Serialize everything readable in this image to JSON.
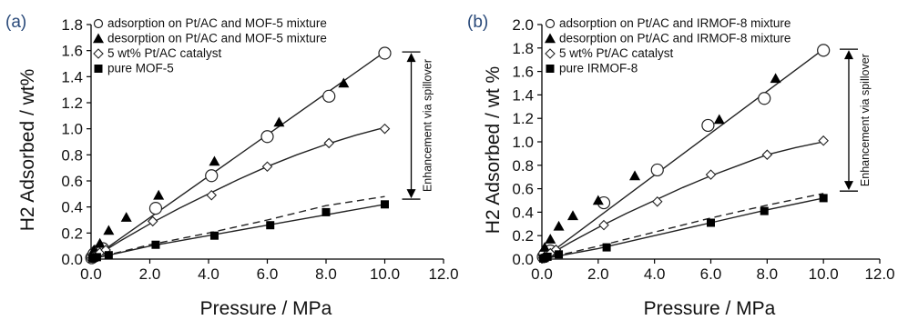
{
  "figure": {
    "panels": [
      "(a)",
      "(b)"
    ]
  },
  "chart_data": [
    {
      "type": "scatter",
      "panel_label": "(a)",
      "xlabel": "Pressure / MPa",
      "ylabel": "H2 Adsorbed / wt%",
      "xlim": [
        0,
        12
      ],
      "ylim": [
        0,
        1.8
      ],
      "xticks": [
        "0.0",
        "2.0",
        "4.0",
        "6.0",
        "8.0",
        "10.0",
        "12.0"
      ],
      "yticks": [
        "0.0",
        "0.2",
        "0.4",
        "0.6",
        "0.8",
        "1.0",
        "1.2",
        "1.4",
        "1.6",
        "1.8"
      ],
      "legend_position": "top-left",
      "annotation": "Enhancement via spillover",
      "enhancement_range": [
        0.46,
        1.59
      ],
      "series": [
        {
          "name": "adsorption on Pt/AC and MOF-5 mixture",
          "marker": "circle-open",
          "size": "large",
          "x": [
            0.02,
            0.05,
            0.1,
            0.2,
            0.4,
            2.2,
            4.1,
            6.0,
            8.1,
            10.0
          ],
          "y": [
            0.01,
            0.02,
            0.04,
            0.06,
            0.08,
            0.39,
            0.64,
            0.94,
            1.25,
            1.58
          ],
          "fit": "solid-linear",
          "fit_x": [
            0,
            10
          ],
          "fit_y": [
            0,
            1.59
          ]
        },
        {
          "name": "desorption on Pt/AC and MOF-5 mixture",
          "marker": "triangle-filled",
          "x": [
            0.1,
            0.3,
            0.6,
            1.2,
            2.3,
            4.2,
            6.4,
            8.6
          ],
          "y": [
            0.07,
            0.12,
            0.22,
            0.32,
            0.49,
            0.75,
            1.05,
            1.35
          ]
        },
        {
          "name": "5 wt% Pt/AC catalyst",
          "marker": "diamond-open",
          "x": [
            0.05,
            0.1,
            0.3,
            0.5,
            2.1,
            4.1,
            6.0,
            8.1,
            10.0
          ],
          "y": [
            0.01,
            0.02,
            0.05,
            0.07,
            0.29,
            0.49,
            0.71,
            0.89,
            1.0
          ],
          "fit": "solid-curve",
          "fit_x": [
            0,
            1,
            2,
            3,
            4,
            5,
            6,
            7,
            8,
            9,
            10
          ],
          "fit_y": [
            0,
            0.14,
            0.27,
            0.39,
            0.5,
            0.61,
            0.71,
            0.8,
            0.88,
            0.95,
            1.01
          ]
        },
        {
          "name": "pure MOF-5",
          "marker": "square-filled",
          "x": [
            0.05,
            0.1,
            0.2,
            0.6,
            2.2,
            4.2,
            6.1,
            8.0,
            10.0
          ],
          "y": [
            0.005,
            0.01,
            0.015,
            0.03,
            0.11,
            0.18,
            0.26,
            0.36,
            0.42
          ],
          "fit": "solid-curve",
          "fit_x": [
            0,
            2,
            4,
            6,
            8,
            10
          ],
          "fit_y": [
            0,
            0.1,
            0.18,
            0.26,
            0.34,
            0.42
          ],
          "fit2": "dashed",
          "fit2_x": [
            0,
            2,
            4,
            6,
            8,
            10
          ],
          "fit2_y": [
            0,
            0.11,
            0.2,
            0.3,
            0.41,
            0.48
          ]
        }
      ]
    },
    {
      "type": "scatter",
      "panel_label": "(b)",
      "xlabel": "Pressure / MPa",
      "ylabel": "H2 Adsorbed / wt %",
      "xlim": [
        0,
        12
      ],
      "ylim": [
        0,
        2.0
      ],
      "xticks": [
        "0.0",
        "2.0",
        "4.0",
        "6.0",
        "8.0",
        "10.0",
        "12.0"
      ],
      "yticks": [
        "0.0",
        "0.2",
        "0.4",
        "0.6",
        "0.8",
        "1.0",
        "1.2",
        "1.4",
        "1.6",
        "1.8",
        "2.0"
      ],
      "legend_position": "top-left",
      "annotation": "Enhancement via spillover",
      "enhancement_range": [
        0.58,
        1.79
      ],
      "series": [
        {
          "name": "adsorption on Pt/AC and IRMOF-8 mixture",
          "marker": "circle-open",
          "size": "large",
          "x": [
            0.05,
            0.1,
            0.3,
            2.2,
            4.1,
            5.9,
            7.9,
            10.0
          ],
          "y": [
            0.02,
            0.04,
            0.07,
            0.48,
            0.76,
            1.14,
            1.37,
            1.78
          ],
          "fit": "solid-linear",
          "fit_x": [
            0,
            10
          ],
          "fit_y": [
            0,
            1.79
          ]
        },
        {
          "name": "desorption on Pt/AC and IRMOF-8 mixture",
          "marker": "triangle-filled",
          "x": [
            0.1,
            0.3,
            0.6,
            1.1,
            2.0,
            3.3,
            6.3,
            8.3
          ],
          "y": [
            0.1,
            0.17,
            0.28,
            0.37,
            0.5,
            0.71,
            1.19,
            1.54
          ]
        },
        {
          "name": "5 wt% Pt/AC catalyst",
          "marker": "diamond-open",
          "x": [
            0.05,
            0.1,
            0.3,
            0.5,
            2.2,
            4.1,
            6.0,
            8.0,
            10.0
          ],
          "y": [
            0.01,
            0.02,
            0.05,
            0.08,
            0.29,
            0.49,
            0.72,
            0.89,
            1.01
          ],
          "fit": "solid-curve",
          "fit_x": [
            0,
            1,
            2,
            3,
            4,
            5,
            6,
            7,
            8,
            9,
            10
          ],
          "fit_y": [
            0,
            0.14,
            0.27,
            0.39,
            0.5,
            0.61,
            0.71,
            0.8,
            0.89,
            0.95,
            1.0
          ]
        },
        {
          "name": "pure IRMOF-8",
          "marker": "square-filled",
          "x": [
            0.05,
            0.1,
            0.2,
            0.6,
            2.3,
            6.0,
            7.9,
            10.0
          ],
          "y": [
            0.005,
            0.01,
            0.02,
            0.04,
            0.1,
            0.31,
            0.41,
            0.52
          ],
          "fit": "solid-curve",
          "fit_x": [
            0,
            2,
            4,
            6,
            8,
            10
          ],
          "fit_y": [
            0,
            0.09,
            0.2,
            0.31,
            0.42,
            0.52
          ],
          "fit2": "dashed",
          "fit2_x": [
            0,
            2,
            4,
            6,
            8,
            10
          ],
          "fit2_y": [
            0,
            0.11,
            0.23,
            0.35,
            0.46,
            0.56
          ]
        }
      ]
    }
  ]
}
